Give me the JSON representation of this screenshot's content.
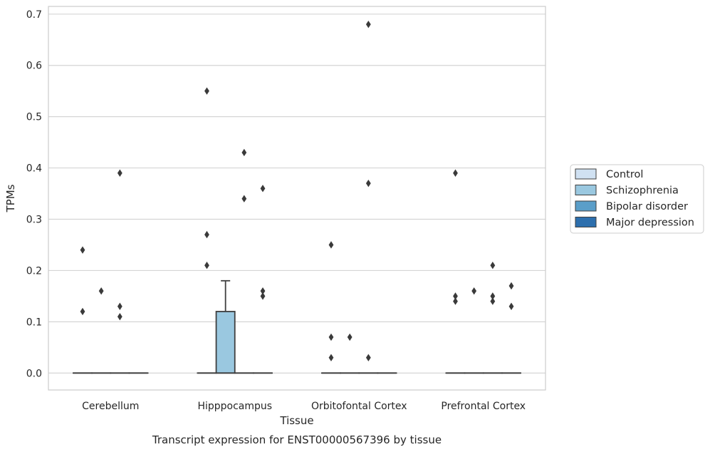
{
  "chart_data": {
    "type": "box",
    "caption": "Transcript expression for ENST00000567396 by tissue",
    "xlabel": "Tissue",
    "ylabel": "TPMs",
    "ylim": [
      -0.033,
      0.715
    ],
    "yticks": [
      0.0,
      0.1,
      0.2,
      0.3,
      0.4,
      0.5,
      0.6,
      0.7
    ],
    "ytick_labels": [
      "0.0",
      "0.1",
      "0.2",
      "0.3",
      "0.4",
      "0.5",
      "0.6",
      "0.7"
    ],
    "grid": "horizontal",
    "legend_position": "right",
    "categories": [
      "Cerebellum",
      "Hipppocampus",
      "Orbitofontal Cortex",
      "Prefrontal Cortex"
    ],
    "series": [
      {
        "name": "Control",
        "color": "#d0e1f2",
        "boxes": [
          {
            "q1": 0,
            "median": 0,
            "q3": 0,
            "whisker_low": 0,
            "whisker_high": 0,
            "outliers": [
              0.24,
              0.12
            ]
          },
          {
            "q1": 0,
            "median": 0,
            "q3": 0,
            "whisker_low": 0,
            "whisker_high": 0,
            "outliers": [
              0.55,
              0.27,
              0.21
            ]
          },
          {
            "q1": 0,
            "median": 0,
            "q3": 0,
            "whisker_low": 0,
            "whisker_high": 0,
            "outliers": [
              0.25,
              0.07,
              0.03
            ]
          },
          {
            "q1": 0,
            "median": 0,
            "q3": 0,
            "whisker_low": 0,
            "whisker_high": 0,
            "outliers": [
              0.39,
              0.15,
              0.14
            ]
          }
        ]
      },
      {
        "name": "Schizophrenia",
        "color": "#9ac8e0",
        "boxes": [
          {
            "q1": 0,
            "median": 0,
            "q3": 0,
            "whisker_low": 0,
            "whisker_high": 0,
            "outliers": [
              0.16
            ]
          },
          {
            "q1": 0,
            "median": 0,
            "q3": 0.12,
            "whisker_low": 0,
            "whisker_high": 0.18,
            "outliers": []
          },
          {
            "q1": 0,
            "median": 0,
            "q3": 0,
            "whisker_low": 0,
            "whisker_high": 0,
            "outliers": [
              0.07
            ]
          },
          {
            "q1": 0,
            "median": 0,
            "q3": 0,
            "whisker_low": 0,
            "whisker_high": 0,
            "outliers": [
              0.16
            ]
          }
        ]
      },
      {
        "name": "Bipolar disorder",
        "color": "#5a9ec9",
        "boxes": [
          {
            "q1": 0,
            "median": 0,
            "q3": 0,
            "whisker_low": 0,
            "whisker_high": 0,
            "outliers": [
              0.39,
              0.13,
              0.11
            ]
          },
          {
            "q1": 0,
            "median": 0,
            "q3": 0,
            "whisker_low": 0,
            "whisker_high": 0,
            "outliers": [
              0.43,
              0.34
            ]
          },
          {
            "q1": 0,
            "median": 0,
            "q3": 0,
            "whisker_low": 0,
            "whisker_high": 0,
            "outliers": [
              0.68,
              0.37,
              0.03
            ]
          },
          {
            "q1": 0,
            "median": 0,
            "q3": 0,
            "whisker_low": 0,
            "whisker_high": 0,
            "outliers": [
              0.21,
              0.15,
              0.14
            ]
          }
        ]
      },
      {
        "name": "Major depression",
        "color": "#2d6fad",
        "boxes": [
          {
            "q1": 0,
            "median": 0,
            "q3": 0,
            "whisker_low": 0,
            "whisker_high": 0,
            "outliers": []
          },
          {
            "q1": 0,
            "median": 0,
            "q3": 0,
            "whisker_low": 0,
            "whisker_high": 0,
            "outliers": [
              0.36,
              0.16,
              0.15
            ]
          },
          {
            "q1": 0,
            "median": 0,
            "q3": 0,
            "whisker_low": 0,
            "whisker_high": 0,
            "outliers": []
          },
          {
            "q1": 0,
            "median": 0,
            "q3": 0,
            "whisker_low": 0,
            "whisker_high": 0,
            "outliers": [
              0.17,
              0.13
            ]
          }
        ]
      }
    ]
  }
}
